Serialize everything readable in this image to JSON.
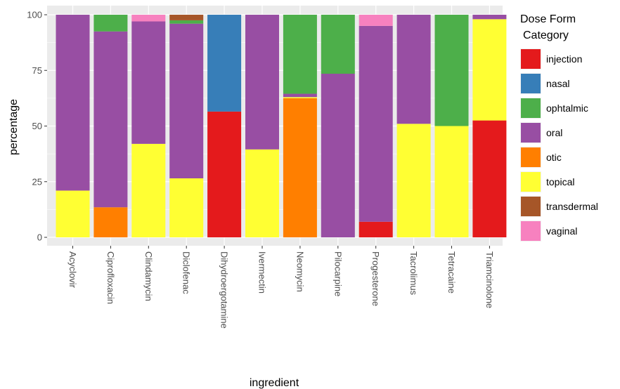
{
  "chart_data": {
    "type": "bar",
    "stacked": true,
    "xlabel": "ingredient",
    "ylabel": "percentage",
    "ylim": [
      0,
      100
    ],
    "yticks": [
      0,
      25,
      50,
      75,
      100
    ],
    "grid": true,
    "legend_position": "right",
    "legend_title_lines": [
      "Dose Form",
      "Category"
    ],
    "categories": [
      "Acyclovir",
      "Ciprofloxacin",
      "Clindamycin",
      "Diclofenac",
      "Dihydroergotamine",
      "Ivermectin",
      "Neomycin",
      "Pilocarpine",
      "Progesterone",
      "Tacrolimus",
      "Tetracaine",
      "Triamcinolone"
    ],
    "series": [
      {
        "name": "injection",
        "color": "#E41A1C",
        "values": [
          0,
          0,
          0,
          0,
          56.5,
          0,
          0,
          0,
          7.0,
          0,
          0,
          52.5
        ]
      },
      {
        "name": "nasal",
        "color": "#377EB8",
        "values": [
          0,
          0,
          0,
          0,
          43.5,
          0,
          0,
          0,
          0,
          0,
          0,
          0
        ]
      },
      {
        "name": "ophtalmic",
        "color": "#4DAF4A",
        "values": [
          0,
          7.5,
          0,
          1.5,
          0,
          0,
          35.5,
          26.5,
          0,
          0,
          50,
          0
        ]
      },
      {
        "name": "oral",
        "color": "#984EA3",
        "values": [
          79,
          79,
          55,
          69.5,
          0,
          60.5,
          1.5,
          73.5,
          88,
          49,
          0,
          2
        ]
      },
      {
        "name": "otic",
        "color": "#FF7F00",
        "values": [
          0,
          13.5,
          0,
          0,
          0,
          0,
          62.5,
          0,
          0,
          0,
          0,
          0
        ]
      },
      {
        "name": "topical",
        "color": "#FFFF33",
        "values": [
          21,
          0,
          42,
          26.5,
          0,
          39.5,
          0.5,
          0,
          0,
          51,
          50,
          45.5
        ]
      },
      {
        "name": "transdermal",
        "color": "#A65628",
        "values": [
          0,
          0,
          0,
          2.5,
          0,
          0,
          0,
          0,
          0,
          0,
          0,
          0
        ]
      },
      {
        "name": "vaginal",
        "color": "#F781BF",
        "values": [
          0,
          0,
          3,
          0,
          0,
          0,
          0,
          0,
          5,
          0,
          0,
          0
        ]
      }
    ],
    "stack_order_bottom_to_top": [
      "injection",
      "otic",
      "topical",
      "oral",
      "ophtalmic",
      "nasal",
      "transdermal",
      "vaginal"
    ]
  }
}
